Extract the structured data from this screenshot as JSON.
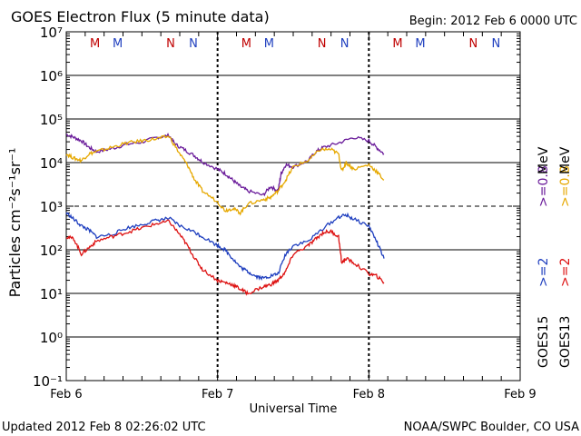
{
  "chart_data": {
    "type": "line",
    "title": "GOES Electron Flux (5 minute data)",
    "begin_label": "Begin: 2012 Feb 6 0000 UTC",
    "xlabel": "Universal Time",
    "ylabel": "Particles cm⁻²s⁻¹sr⁻¹",
    "x_unit": "days since begin",
    "xlim": [
      0,
      3
    ],
    "ylim_log10": [
      -1,
      7
    ],
    "x_ticks": [
      {
        "x": 0,
        "label": "Feb 6"
      },
      {
        "x": 1,
        "label": "Feb 7"
      },
      {
        "x": 2,
        "label": "Feb 8"
      },
      {
        "x": 3,
        "label": "Feb 9"
      }
    ],
    "y_ticks": [
      {
        "exp": 7,
        "label": "10⁷"
      },
      {
        "exp": 6,
        "label": "10⁶"
      },
      {
        "exp": 5,
        "label": "10⁵"
      },
      {
        "exp": 4,
        "label": "10⁴"
      },
      {
        "exp": 3,
        "label": "10³"
      },
      {
        "exp": 2,
        "label": "10²"
      },
      {
        "exp": 1,
        "label": "10¹"
      },
      {
        "exp": 0,
        "label": "10⁰"
      },
      {
        "exp": -1,
        "label": "10⁻¹"
      }
    ],
    "hlines": [
      {
        "exp": 6,
        "style": "solid"
      },
      {
        "exp": 5,
        "style": "solid"
      },
      {
        "exp": 4,
        "style": "solid"
      },
      {
        "exp": 3,
        "style": "dashed"
      },
      {
        "exp": 2,
        "style": "solid"
      },
      {
        "exp": 1,
        "style": "solid"
      },
      {
        "exp": 0,
        "style": "solid"
      }
    ],
    "day_boundaries": [
      1,
      2
    ],
    "mn_markers": [
      {
        "x": 0.19,
        "label": "M",
        "color": "#c00000"
      },
      {
        "x": 0.34,
        "label": "M",
        "color": "#1f3fbf"
      },
      {
        "x": 0.69,
        "label": "N",
        "color": "#c00000"
      },
      {
        "x": 0.84,
        "label": "N",
        "color": "#1f3fbf"
      },
      {
        "x": 1.19,
        "label": "M",
        "color": "#c00000"
      },
      {
        "x": 1.34,
        "label": "M",
        "color": "#1f3fbf"
      },
      {
        "x": 1.69,
        "label": "N",
        "color": "#c00000"
      },
      {
        "x": 1.84,
        "label": "N",
        "color": "#1f3fbf"
      },
      {
        "x": 2.19,
        "label": "M",
        "color": "#c00000"
      },
      {
        "x": 2.34,
        "label": "M",
        "color": "#1f3fbf"
      },
      {
        "x": 2.69,
        "label": "N",
        "color": "#c00000"
      },
      {
        "x": 2.84,
        "label": "N",
        "color": "#1f3fbf"
      }
    ],
    "series": [
      {
        "name": "GOES15 >=0.8 MeV",
        "color": "#6a1b9a",
        "x": [
          0.0,
          0.05,
          0.1,
          0.15,
          0.2,
          0.3,
          0.4,
          0.5,
          0.6,
          0.68,
          0.72,
          0.78,
          0.85,
          0.9,
          1.0,
          1.05,
          1.1,
          1.15,
          1.2,
          1.3,
          1.35,
          1.4,
          1.42,
          1.45,
          1.5,
          1.6,
          1.65,
          1.7,
          1.8,
          1.9,
          2.0,
          2.05,
          2.1
        ],
        "log10": [
          4.65,
          4.58,
          4.5,
          4.35,
          4.25,
          4.32,
          4.42,
          4.47,
          4.58,
          4.62,
          4.42,
          4.3,
          4.15,
          4.02,
          3.85,
          3.75,
          3.6,
          3.45,
          3.35,
          3.25,
          3.45,
          3.35,
          3.75,
          3.95,
          3.9,
          4.05,
          4.25,
          4.35,
          4.45,
          4.58,
          4.5,
          4.35,
          4.2
        ]
      },
      {
        "name": "GOES13 >=0.8 MeV",
        "color": "#e6a800",
        "x": [
          0.0,
          0.05,
          0.1,
          0.15,
          0.2,
          0.3,
          0.4,
          0.5,
          0.6,
          0.68,
          0.75,
          0.8,
          0.85,
          0.9,
          1.0,
          1.05,
          1.1,
          1.15,
          1.2,
          1.3,
          1.35,
          1.4,
          1.45,
          1.5,
          1.6,
          1.68,
          1.75,
          1.8,
          1.82,
          1.85,
          1.9,
          2.0,
          2.05,
          2.1
        ],
        "log10": [
          4.2,
          4.1,
          4.05,
          4.2,
          4.25,
          4.35,
          4.45,
          4.5,
          4.55,
          4.6,
          4.2,
          3.95,
          3.6,
          3.35,
          3.1,
          2.9,
          2.95,
          2.85,
          3.05,
          3.15,
          3.2,
          3.35,
          3.6,
          3.9,
          4.05,
          4.3,
          4.3,
          4.2,
          3.8,
          4.0,
          3.85,
          3.95,
          3.8,
          3.6
        ]
      },
      {
        "name": "GOES15 >=2 MeV",
        "color": "#1f3fbf",
        "x": [
          0.0,
          0.05,
          0.1,
          0.15,
          0.2,
          0.3,
          0.4,
          0.5,
          0.6,
          0.68,
          0.75,
          0.85,
          0.9,
          1.0,
          1.05,
          1.1,
          1.15,
          1.2,
          1.25,
          1.3,
          1.35,
          1.4,
          1.45,
          1.5,
          1.6,
          1.7,
          1.8,
          1.85,
          1.9,
          2.0,
          2.05,
          2.1
        ],
        "log10": [
          2.85,
          2.7,
          2.55,
          2.45,
          2.3,
          2.35,
          2.5,
          2.58,
          2.68,
          2.72,
          2.55,
          2.4,
          2.3,
          2.1,
          2.0,
          1.8,
          1.6,
          1.5,
          1.4,
          1.35,
          1.4,
          1.45,
          1.9,
          2.1,
          2.2,
          2.5,
          2.75,
          2.8,
          2.7,
          2.55,
          2.2,
          1.8
        ]
      },
      {
        "name": "GOES13 >=2 MeV",
        "color": "#dd1111",
        "x": [
          0.0,
          0.05,
          0.1,
          0.15,
          0.2,
          0.3,
          0.4,
          0.5,
          0.6,
          0.68,
          0.75,
          0.8,
          0.85,
          0.9,
          1.0,
          1.05,
          1.1,
          1.15,
          1.2,
          1.3,
          1.35,
          1.4,
          1.45,
          1.5,
          1.6,
          1.65,
          1.7,
          1.75,
          1.8,
          1.82,
          1.85,
          1.9,
          2.0,
          2.05,
          2.1
        ],
        "log10": [
          2.3,
          2.25,
          1.9,
          2.05,
          2.2,
          2.3,
          2.4,
          2.5,
          2.6,
          2.65,
          2.35,
          2.1,
          1.8,
          1.55,
          1.3,
          1.25,
          1.2,
          1.1,
          1.0,
          1.15,
          1.2,
          1.3,
          1.5,
          1.9,
          2.1,
          2.25,
          2.4,
          2.42,
          2.3,
          1.7,
          1.8,
          1.7,
          1.45,
          1.4,
          1.25
        ]
      }
    ],
    "right_labels": [
      {
        "sat": "GOES15",
        "range": ">=2",
        "color": "#1f3fbf"
      },
      {
        "sat": "GOES13",
        "range": ">=2",
        "color": "#dd1111"
      },
      {
        "sat": "",
        "range": ">=0.8",
        "color": "#6a1b9a"
      },
      {
        "sat": "",
        "range": ">=0.8",
        "color": "#e6a800"
      }
    ],
    "unit_label": "MeV"
  },
  "footer": {
    "updated": "Updated 2012 Feb  8 02:26:02 UTC",
    "source": "NOAA/SWPC Boulder, CO USA"
  }
}
